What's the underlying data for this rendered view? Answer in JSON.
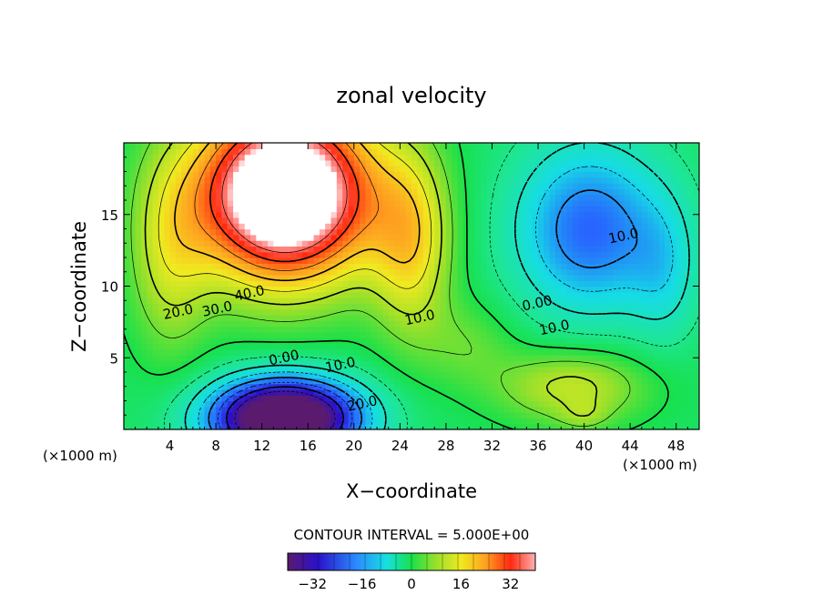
{
  "chart_data": {
    "type": "heatmap",
    "title": "zonal velocity",
    "xlabel": "X−coordinate",
    "ylabel": "Z−coordinate",
    "x_unit": "(×1000 m)",
    "y_unit": "(×1000 m)",
    "xlim": [
      0,
      50
    ],
    "ylim": [
      0,
      20
    ],
    "x_ticks": [
      4,
      8,
      12,
      16,
      20,
      24,
      28,
      32,
      36,
      40,
      44,
      48
    ],
    "x_tick_labels": [
      "4",
      "8",
      "12",
      "16",
      "20",
      "24",
      "28",
      "32",
      "36",
      "40",
      "44",
      "48"
    ],
    "y_ticks": [
      5,
      10,
      15
    ],
    "y_tick_labels": [
      "5",
      "10",
      "15"
    ],
    "contour_interval_text": "CONTOUR INTERVAL = 5.000E+00",
    "contour_interval": 5,
    "colorbar": {
      "min": -40,
      "max": 40,
      "ticks": [
        -32,
        -16,
        0,
        16,
        32
      ],
      "tick_labels": [
        "−32",
        "−16",
        "0",
        "16",
        "32"
      ]
    },
    "contour_labels": [
      {
        "text": "40.0",
        "x": 11.0,
        "y": 9.2
      },
      {
        "text": "30.0",
        "x": 8.2,
        "y": 8.1
      },
      {
        "text": "20.0",
        "x": 4.8,
        "y": 7.9
      },
      {
        "text": "10.0",
        "x": 25.8,
        "y": 7.5
      },
      {
        "text": "0.00",
        "x": 14.0,
        "y": 4.7
      },
      {
        "text": "10.0",
        "x": 18.9,
        "y": 4.2
      },
      {
        "text": "20.0",
        "x": 20.8,
        "y": 1.5
      },
      {
        "text": "0.00",
        "x": 36.0,
        "y": 8.5
      },
      {
        "text": "10.0",
        "x": 37.5,
        "y": 6.8
      },
      {
        "text": "10.0",
        "x": 43.5,
        "y": 13.2
      }
    ],
    "features": [
      {
        "kind": "jet_max",
        "x": 14.0,
        "y": 15.0,
        "value": 40
      },
      {
        "kind": "jet_min",
        "x": 14.0,
        "y": 1.5,
        "value": -35
      },
      {
        "kind": "upper_min",
        "x": 40.5,
        "y": 13.0,
        "value": -15
      },
      {
        "kind": "lower_max",
        "x": 38.5,
        "y": 3.0,
        "value": 12
      }
    ]
  }
}
